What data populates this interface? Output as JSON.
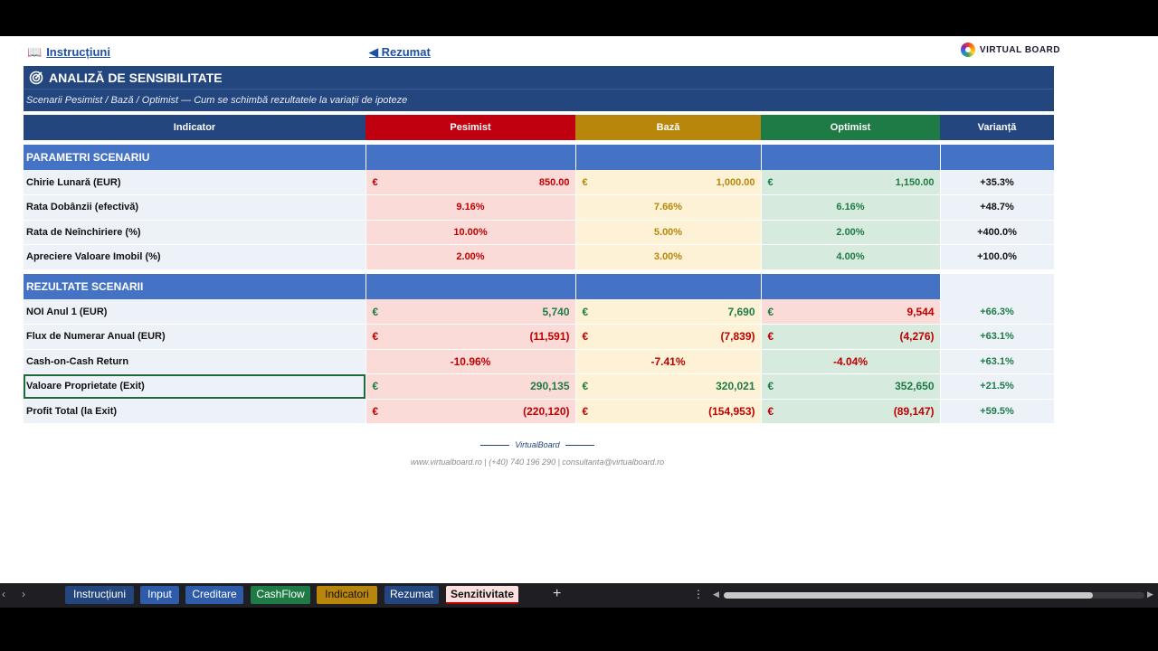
{
  "nav": {
    "instructions_link": "Instrucțiuni",
    "summary_link": "◀ Rezumat",
    "logo_text": "VIRTUAL BOARD"
  },
  "header": {
    "title": "ANALIZĂ DE SENSIBILITATE",
    "subtitle": "Scenarii Pesimist / Bază / Optimist — Cum se schimbă rezultatele la variații de ipoteze"
  },
  "columns": {
    "indicator": "Indicator",
    "pesimist": "Pesimist",
    "baza": "Bază",
    "optimist": "Optimist",
    "varianta": "Varianță"
  },
  "currency": "€",
  "parameters": {
    "section_title": "PARAMETRI SCENARIU",
    "rows": [
      {
        "label": "Chirie Lunară (EUR)",
        "pesimist": "850.00",
        "baza": "1,000.00",
        "optimist": "1,150.00",
        "variance": "+35.3%"
      },
      {
        "label": "Rata Dobânzii (efectivă)",
        "pesimist": "9.16%",
        "baza": "7.66%",
        "optimist": "6.16%",
        "variance": "+48.7%"
      },
      {
        "label": "Rata de Neînchiriere (%)",
        "pesimist": "10.00%",
        "baza": "5.00%",
        "optimist": "2.00%",
        "variance": "+400.0%"
      },
      {
        "label": "Apreciere Valoare Imobil (%)",
        "pesimist": "2.00%",
        "baza": "3.00%",
        "optimist": "4.00%",
        "variance": "+100.0%"
      }
    ]
  },
  "results": {
    "section_title": "REZULTATE SCENARII",
    "rows": [
      {
        "label": "NOI Anul 1 (EUR)",
        "pesimist": "5,740",
        "baza": "7,690",
        "optimist": "9,544",
        "variance": "+66.3%"
      },
      {
        "label": "Flux de Numerar Anual (EUR)",
        "pesimist": "(11,591)",
        "baza": "(7,839)",
        "optimist": "(4,276)",
        "variance": "+63.1%"
      },
      {
        "label": "Cash-on-Cash Return",
        "pesimist": "-10.96%",
        "baza": "-7.41%",
        "optimist": "-4.04%",
        "variance": "+63.1%"
      },
      {
        "label": "Valoare Proprietate (Exit)",
        "pesimist": "290,135",
        "baza": "320,021",
        "optimist": "352,650",
        "variance": "+21.5%"
      },
      {
        "label": "Profit Total (la Exit)",
        "pesimist": "(220,120)",
        "baza": "(154,953)",
        "optimist": "(89,147)",
        "variance": "+59.5%"
      }
    ]
  },
  "footer": {
    "brand": "VirtualBoard",
    "contact": "www.virtualboard.ro  |  (+40) 740 196 290  |  consultanta@virtualboard.ro"
  },
  "tabs": [
    {
      "label": "Instrucțiuni",
      "color": "#24467f"
    },
    {
      "label": "Input",
      "color": "#2e5caa"
    },
    {
      "label": "Creditare",
      "color": "#2e5caa"
    },
    {
      "label": "CashFlow",
      "color": "#1e7b45"
    },
    {
      "label": "Indicatori",
      "color": "#b8860b"
    },
    {
      "label": "Rezumat",
      "color": "#24467f"
    },
    {
      "label": "Senzitivitate",
      "color": "#fde0e0"
    }
  ],
  "tabbar": {
    "add_label": "+",
    "more_label": "⋮"
  }
}
